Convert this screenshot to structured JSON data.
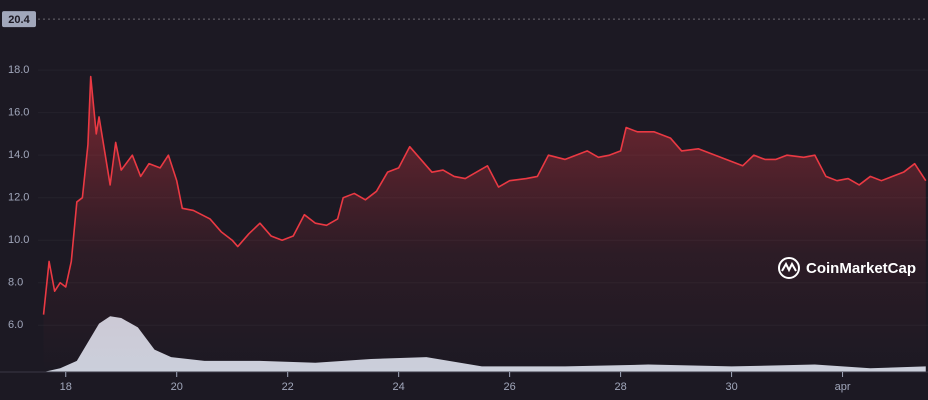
{
  "chart_data": {
    "type": "line",
    "color": "#ea3943",
    "x": [
      17.6,
      17.7,
      17.8,
      17.9,
      18.0,
      18.1,
      18.2,
      18.3,
      18.4,
      18.45,
      18.55,
      18.6,
      18.7,
      18.8,
      18.9,
      19.0,
      19.2,
      19.35,
      19.5,
      19.7,
      19.85,
      20.0,
      20.1,
      20.3,
      20.6,
      20.8,
      21.0,
      21.1,
      21.3,
      21.5,
      21.7,
      21.9,
      22.1,
      22.3,
      22.5,
      22.7,
      22.9,
      23.0,
      23.2,
      23.4,
      23.6,
      23.8,
      24.0,
      24.2,
      24.4,
      24.6,
      24.8,
      25.0,
      25.2,
      25.4,
      25.6,
      25.8,
      26.0,
      26.3,
      26.5,
      26.7,
      27.0,
      27.2,
      27.4,
      27.6,
      27.8,
      28.0,
      28.1,
      28.3,
      28.6,
      28.9,
      29.1,
      29.4,
      29.7,
      30.0,
      30.2,
      30.4,
      30.6,
      30.8,
      31.0,
      31.3,
      31.5,
      31.7,
      31.9,
      32.1,
      32.3,
      32.5,
      32.7,
      32.9,
      33.1,
      33.3,
      33.5
    ],
    "values": [
      6.5,
      9.0,
      7.6,
      8.0,
      7.8,
      9.0,
      11.8,
      12.0,
      14.5,
      17.7,
      15.0,
      15.8,
      14.2,
      12.6,
      14.6,
      13.3,
      14.0,
      13.0,
      13.6,
      13.4,
      14.0,
      12.8,
      11.5,
      11.4,
      11.0,
      10.4,
      10.0,
      9.7,
      10.3,
      10.8,
      10.2,
      10.0,
      10.2,
      11.2,
      10.8,
      10.7,
      11.0,
      12.0,
      12.2,
      11.9,
      12.3,
      13.2,
      13.4,
      14.4,
      13.8,
      13.2,
      13.3,
      13.0,
      12.9,
      13.2,
      13.5,
      12.5,
      12.8,
      12.9,
      13.0,
      14.0,
      13.8,
      14.0,
      14.2,
      13.9,
      14.0,
      14.2,
      15.3,
      15.1,
      15.1,
      14.8,
      14.2,
      14.3,
      14.0,
      13.7,
      13.5,
      14.0,
      13.8,
      13.8,
      14.0,
      13.9,
      14.0,
      13.0,
      12.8,
      12.9,
      12.6,
      13.0,
      12.8,
      13.0,
      13.2,
      13.6,
      12.8
    ],
    "volume": {
      "axis": "y2",
      "color": "#d5d9e6",
      "x": [
        17.6,
        17.9,
        18.2,
        18.4,
        18.6,
        18.8,
        19.0,
        19.3,
        19.6,
        19.9,
        20.5,
        21.5,
        22.5,
        23.5,
        24.5,
        25.5,
        27.0,
        28.5,
        30.0,
        31.5,
        32.5,
        33.5
      ],
      "values": [
        0,
        1,
        3,
        8,
        13,
        15,
        14.5,
        12,
        6,
        4,
        3,
        3,
        2.5,
        3.5,
        4,
        1.5,
        1.5,
        2,
        1.5,
        2,
        1,
        1.5
      ]
    },
    "y2lim": [
      0,
      100
    ],
    "xlim": [
      17.5,
      33.54
    ],
    "xticks": [
      18,
      20,
      22,
      24,
      26,
      28,
      30,
      {
        "value": 32,
        "label": "apr"
      }
    ],
    "ylim": [
      3.8,
      21.3
    ],
    "yticks": [
      {
        "value": 6,
        "label": "6.0"
      },
      {
        "value": 8,
        "label": "8.0"
      },
      {
        "value": 10,
        "label": "10.0"
      },
      {
        "value": 12,
        "label": "12.0"
      },
      {
        "value": 14,
        "label": "14.0"
      },
      {
        "value": 16,
        "label": "16.0"
      },
      {
        "value": 18,
        "label": "18.0"
      }
    ],
    "high": 20.4,
    "grid": true,
    "watermark": "CoinMarketCap"
  }
}
